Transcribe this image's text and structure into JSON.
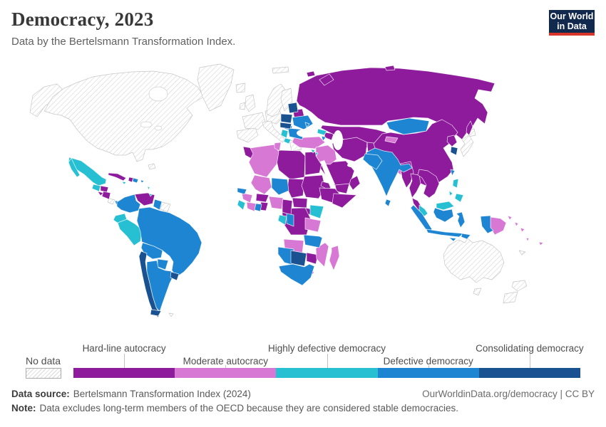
{
  "header": {
    "title": "Democracy, 2023",
    "subtitle": "Data by the Bertelsmann Transformation Index.",
    "logo": {
      "line1": "Our World",
      "line2": "in Data",
      "bg_color": "#12294e",
      "stripe_color": "#d8352a"
    }
  },
  "legend": {
    "no_data_label": "No data",
    "categories": [
      {
        "label": "Hard-line autocracy",
        "color": "#8e1a9c",
        "label_row": "top"
      },
      {
        "label": "Moderate autocracy",
        "color": "#d778d4",
        "label_row": "bottom"
      },
      {
        "label": "Highly defective democracy",
        "color": "#27c0d3",
        "label_row": "top"
      },
      {
        "label": "Defective democracy",
        "color": "#1d85d2",
        "label_row": "bottom"
      },
      {
        "label": "Consolidating democracy",
        "color": "#1a5190",
        "label_row": "top"
      }
    ]
  },
  "footer": {
    "data_source_label": "Data source:",
    "data_source_text": "Bertelsmann Transformation Index (2024)",
    "note_label": "Note:",
    "note_text": "Data excludes long-term members of the OECD because they are considered stable democracies.",
    "attribution": "OurWorldinData.org/democracy | CC BY"
  },
  "map_data": {
    "type": "choropleth-world-map",
    "ocean_color": "#ffffff",
    "no_data_hatch_color": "#d4d4d4",
    "country_border_color": "#ffffff",
    "classification": {
      "hard_line_autocracy": [
        "Russia",
        "Belarus",
        "Azerbaijan",
        "China",
        "North Korea",
        "Iran",
        "Afghanistan",
        "Kazakhstan",
        "Uzbekistan",
        "Turkmenistan",
        "Tajikistan",
        "Saudi Arabia",
        "Yemen",
        "Oman",
        "Morocco",
        "Libya",
        "Egypt",
        "Chad",
        "Sudan",
        "Eritrea",
        "Ethiopia",
        "Somalia",
        "Uganda",
        "DR Congo",
        "Cameroon",
        "Central African Republic",
        "Burkina Faso",
        "Togo",
        "Benin",
        "Zimbabwe",
        "Lesotho",
        "Myanmar",
        "Thailand",
        "Laos",
        "Vietnam",
        "Cambodia",
        "Cuba",
        "Haiti",
        "Honduras",
        "El Salvador",
        "Nicaragua",
        "Venezuela"
      ],
      "moderate_autocracy": [
        "Algeria",
        "Tunisia",
        "Mauritania",
        "Mali",
        "Guinea",
        "Côte d'Ivoire",
        "Nigeria",
        "Angola",
        "Tanzania",
        "Mozambique",
        "Madagascar",
        "Turkey",
        "Syria",
        "Iraq",
        "Jordan",
        "Kyrgyzstan",
        "Bangladesh",
        "Papua New Guinea",
        "Solomon Islands",
        "Vanuatu",
        "Fiji"
      ],
      "highly_defective_democracy": [
        "Mexico",
        "Guatemala",
        "Jamaica",
        "Ecuador",
        "Peru",
        "Sierra Leone",
        "Liberia",
        "Gabon",
        "Kenya",
        "Georgia",
        "Lebanon",
        "Cyprus",
        "Bosnia and Herzegovina",
        "Serbia",
        "Albania",
        "North Macedonia",
        "Malaysia",
        "Philippines"
      ],
      "defective_democracy": [
        "Panama",
        "Dominican Republic",
        "Colombia",
        "Guyana",
        "Brazil",
        "Bolivia",
        "Paraguay",
        "Argentina",
        "Senegal",
        "Ghana",
        "Niger",
        "Republic of the Congo",
        "Zambia",
        "Malawi",
        "Namibia",
        "South Africa",
        "Ukraine",
        "Hungary",
        "Romania",
        "Bulgaria",
        "Moldova",
        "Armenia",
        "India",
        "Sri Lanka",
        "Pakistan",
        "Mongolia",
        "Taiwan",
        "Indonesia",
        "Timor-Leste"
      ],
      "consolidating_democracy": [
        "Chile",
        "Uruguay",
        "Estonia",
        "Latvia",
        "Lithuania",
        "Poland",
        "Czechia",
        "Slovakia",
        "Botswana",
        "South Korea"
      ],
      "no_data": [
        "Canada",
        "United States",
        "Greenland",
        "Iceland",
        "United Kingdom",
        "Ireland",
        "France",
        "Spain",
        "Portugal",
        "Germany",
        "Denmark",
        "Norway",
        "Sweden",
        "Finland",
        "Italy",
        "Greece",
        "Israel",
        "Japan",
        "Australia",
        "New Zealand",
        "Costa Rica",
        "Suriname",
        "French Guiana",
        "Bahamas"
      ]
    }
  }
}
